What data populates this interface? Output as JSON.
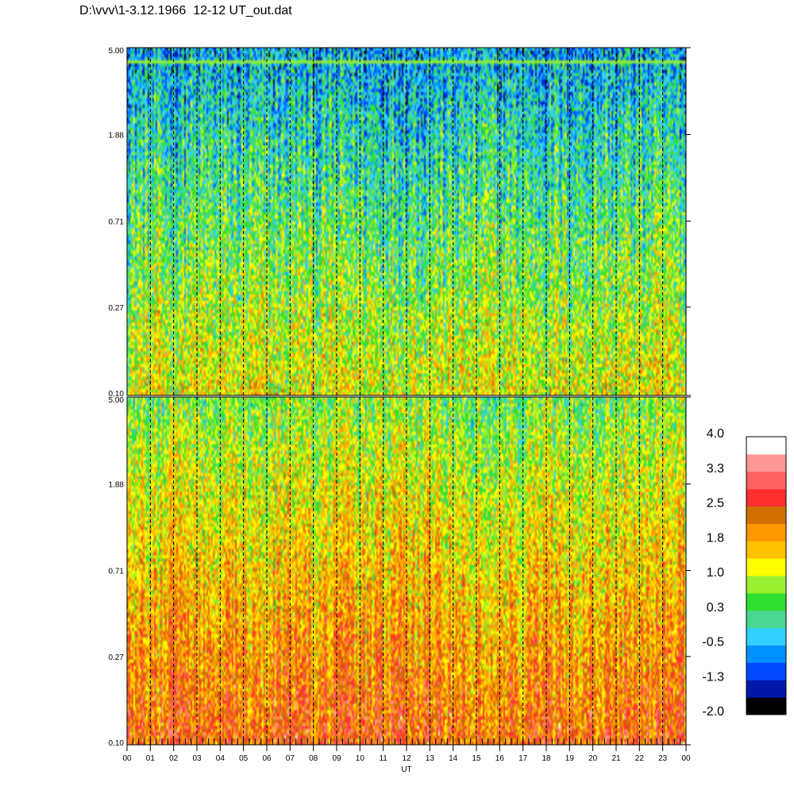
{
  "title": "D:\\vvv\\1-3.12.1966  12-12 UT_out.dat",
  "chart_data": [
    {
      "type": "heatmap",
      "name": "upper-spectrogram",
      "y_scale": "log",
      "ylim": [
        0.1,
        5.0
      ],
      "y_ticks": [
        "5.00",
        "1.88",
        "0.71",
        "0.27",
        "0.10"
      ],
      "xlim": [
        0,
        24
      ],
      "x_ticks": [
        "00",
        "01",
        "02",
        "03",
        "04",
        "05",
        "06",
        "07",
        "08",
        "09",
        "10",
        "11",
        "12",
        "13",
        "14",
        "15",
        "16",
        "17",
        "18",
        "19",
        "20",
        "21",
        "22",
        "23",
        "00"
      ],
      "gradient": {
        "bottom": 1.2,
        "top": -0.6,
        "noise": 0.9
      },
      "hour_markers": "dashed"
    },
    {
      "type": "heatmap",
      "name": "lower-spectrogram",
      "y_scale": "log",
      "ylim": [
        0.1,
        5.0
      ],
      "y_ticks": [
        "5.00",
        "1.88",
        "0.71",
        "0.27",
        "0.10"
      ],
      "xlim": [
        0,
        24
      ],
      "x_ticks": [
        "00",
        "01",
        "02",
        "03",
        "04",
        "05",
        "06",
        "07",
        "08",
        "09",
        "10",
        "11",
        "12",
        "13",
        "14",
        "15",
        "16",
        "17",
        "18",
        "19",
        "20",
        "21",
        "22",
        "23",
        "00"
      ],
      "xlabel": "UT",
      "gradient": {
        "bottom": 2.4,
        "top": 0.6,
        "noise": 0.8
      },
      "hour_markers": "dashed"
    }
  ],
  "colorbar": {
    "labels": [
      "4.0",
      "3.3",
      "2.5",
      "1.8",
      "1.0",
      "0.3",
      "-0.5",
      "-1.3",
      "-2.0"
    ],
    "range": [
      -2.0,
      4.0
    ],
    "colors": [
      "#000000",
      "#0018a8",
      "#0048ff",
      "#0090ff",
      "#30d0ff",
      "#48d890",
      "#30e030",
      "#98f030",
      "#ffff00",
      "#ffc000",
      "#ff9800",
      "#d07000",
      "#ff3030",
      "#ff6060",
      "#ff9898",
      "#ffffff"
    ]
  }
}
